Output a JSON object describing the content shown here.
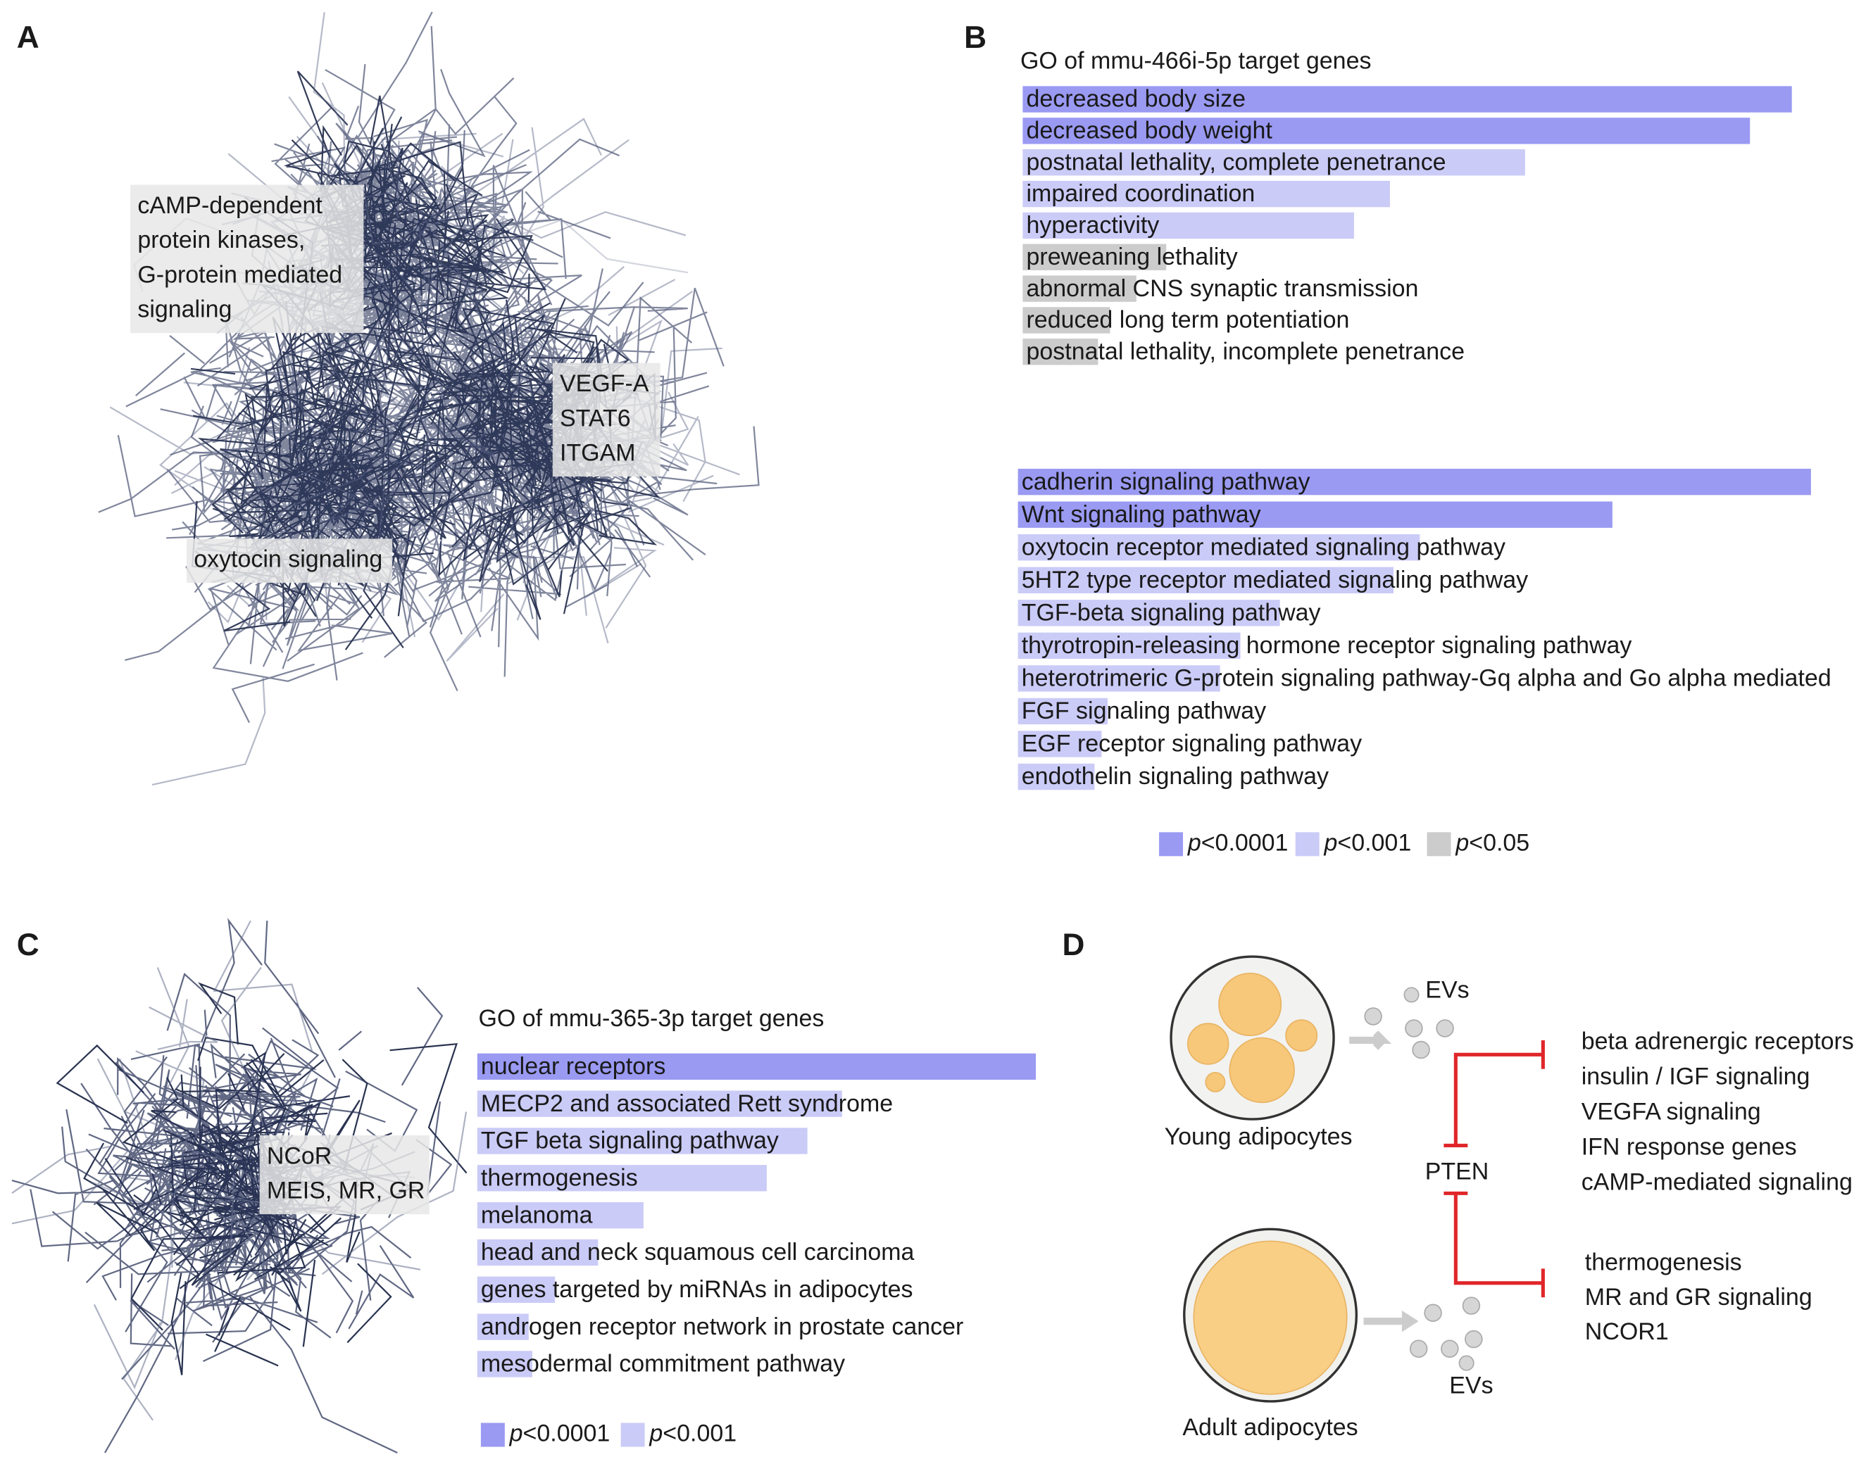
{
  "panel_labels": [
    "A",
    "B",
    "C",
    "D"
  ],
  "network_a": {
    "labels": [
      [
        "cAMP-dependent",
        "protein kinases,",
        "G-protein mediated",
        "signaling"
      ],
      [
        "VEGF-A",
        "STAT6",
        "ITGAM"
      ],
      [
        "oxytocin signaling"
      ]
    ]
  },
  "network_c": {
    "labels": [
      [
        "NCoR",
        "MEIS, MR, GR"
      ]
    ]
  },
  "chart_data": [
    {
      "type": "barh",
      "title": "GO of mmu-466i-5p target genes",
      "categories": [
        "decreased body size",
        "decreased body weight",
        "postnatal lethality, complete penetrance",
        "impaired coordination",
        "hyperactivity",
        "preweaning lethality",
        "abnormal CNS synaptic transmission",
        "reduced long term potentiation",
        "postnatal lethality, incomplete penetrance"
      ],
      "values": [
        643,
        608,
        420,
        307,
        277,
        120,
        95,
        73,
        63
      ],
      "colors": [
        "#9a9af3",
        "#9a9af3",
        "#cbcbf8",
        "#cbcbf8",
        "#cbcbf8",
        "#cccccc",
        "#cccccc",
        "#cccccc",
        "#cccccc"
      ],
      "xlim": [
        0,
        660
      ]
    },
    {
      "type": "barh",
      "categories": [
        "cadherin signaling pathway",
        "Wnt signaling pathway",
        "oxytocin receptor mediated signaling pathway",
        "5HT2 type receptor mediated signaling pathway",
        "TGF-beta signaling pathway",
        "thyrotropin-releasing hormone receptor signaling pathway",
        "heterotrimeric G-protein signaling pathway-Gq alpha and Go alpha mediated",
        "FGF signaling pathway",
        "EGF receptor signaling pathway",
        "endothelin signaling pathway"
      ],
      "values": [
        663,
        497,
        336,
        314,
        219,
        186,
        169,
        75,
        70,
        64
      ],
      "colors": [
        "#9a9af3",
        "#9a9af3",
        "#cbcbf8",
        "#cbcbf8",
        "#cbcbf8",
        "#cbcbf8",
        "#cbcbf8",
        "#cbcbf8",
        "#cbcbf8",
        "#cbcbf8"
      ],
      "xlim": [
        0,
        660
      ],
      "legend": [
        {
          "italic": "p",
          "text": "<0.0001",
          "color": "#9a9af3"
        },
        {
          "italic": "p",
          "text": "<0.001",
          "color": "#cbcbf8"
        },
        {
          "italic": "p",
          "text": "<0.05",
          "color": "#cccccc"
        }
      ]
    },
    {
      "type": "barh",
      "title": "GO of mmu-365-3p target genes",
      "categories": [
        "nuclear receptors",
        "MECP2 and associated Rett syndrome",
        "TGF beta signaling pathway",
        "thermogenesis",
        "melanoma",
        "head and neck squamous cell carcinoma",
        "genes targeted by miRNAs in adipocytes",
        "androgen receptor network in prostate cancer",
        "mesodermal commitment pathway"
      ],
      "values": [
        467,
        305,
        276,
        242,
        139,
        101,
        65,
        43,
        46
      ],
      "colors": [
        "#9a9af3",
        "#cbcbf8",
        "#cbcbf8",
        "#cbcbf8",
        "#cbcbf8",
        "#cbcbf8",
        "#cbcbf8",
        "#cbcbf8",
        "#cbcbf8"
      ],
      "xlim": [
        0,
        660
      ],
      "legend": [
        {
          "italic": "p",
          "text": "<0.0001",
          "color": "#9a9af3"
        },
        {
          "italic": "p",
          "text": "<0.001",
          "color": "#cbcbf8"
        }
      ]
    }
  ],
  "diagram_d": {
    "young": "Young adipocytes",
    "adult": "Adult adipocytes",
    "evs_top": "EVs",
    "evs_bottom": "EVs",
    "center": "PTEN",
    "targets_top": [
      "beta adrenergic receptors",
      "insulin / IGF signaling",
      "VEGFA signaling",
      "IFN response genes",
      "cAMP-mediated signaling"
    ],
    "targets_bottom": [
      "thermogenesis",
      "MR and GR signaling",
      "NCOR1"
    ]
  }
}
